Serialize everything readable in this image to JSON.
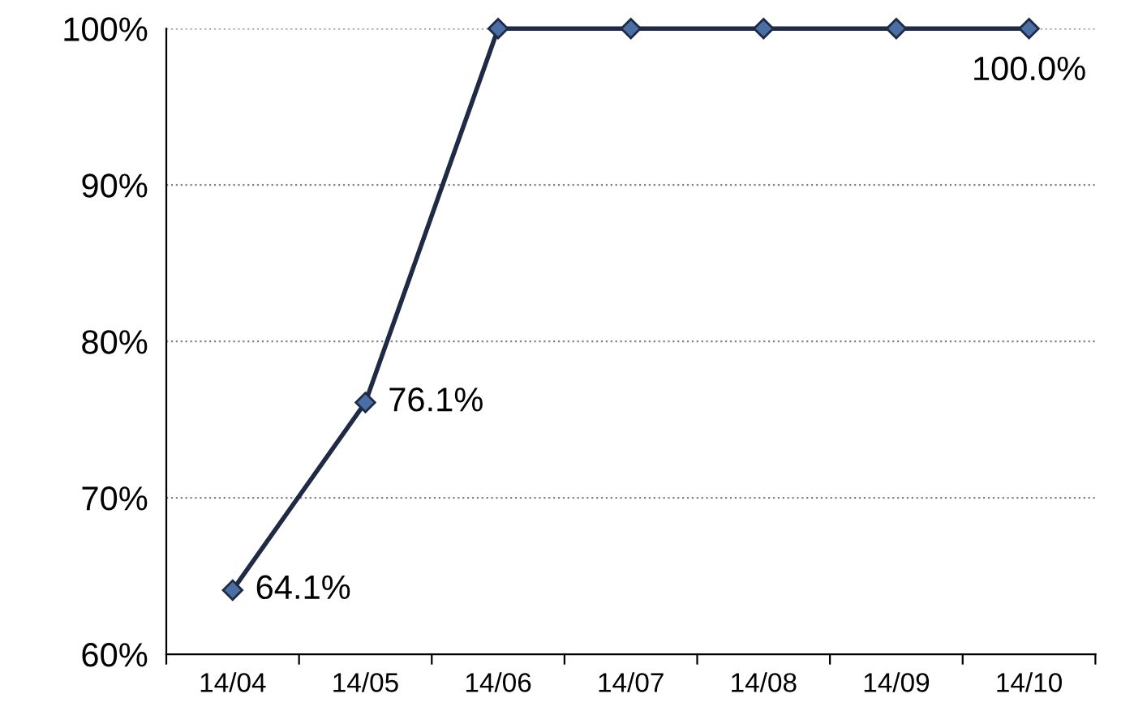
{
  "chart_data": {
    "type": "line",
    "categories": [
      "14/04",
      "14/05",
      "14/06",
      "14/07",
      "14/08",
      "14/09",
      "14/10"
    ],
    "series": [
      {
        "color": "#1f2a44",
        "values": [
          64.1,
          76.1,
          100,
          100,
          100,
          100,
          100
        ],
        "value_labels": [
          "64.1%",
          "76.1%",
          null,
          null,
          null,
          null,
          "100.0%"
        ]
      }
    ],
    "ylim": [
      60,
      100
    ],
    "yticks": [
      {
        "value": 60,
        "label": "60%"
      },
      {
        "value": 70,
        "label": "70%"
      },
      {
        "value": 80,
        "label": "80%"
      },
      {
        "value": 90,
        "label": "90%"
      },
      {
        "value": 100,
        "label": "100%"
      }
    ],
    "grid": "y",
    "marker": "diamond",
    "line_style": "solid",
    "legend": false
  }
}
